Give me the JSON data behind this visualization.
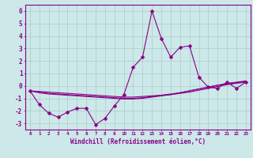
{
  "x_values": [
    0,
    1,
    2,
    3,
    4,
    5,
    6,
    7,
    8,
    9,
    10,
    11,
    12,
    13,
    14,
    15,
    16,
    17,
    18,
    19,
    20,
    21,
    22,
    23
  ],
  "y_main": [
    -0.4,
    -1.5,
    -2.2,
    -2.5,
    -2.1,
    -1.8,
    -1.8,
    -3.1,
    -2.6,
    -1.6,
    -0.7,
    1.5,
    2.3,
    6.0,
    3.8,
    2.3,
    3.1,
    3.2,
    0.7,
    -0.1,
    -0.2,
    0.3,
    -0.2,
    0.3
  ],
  "y_trend1": [
    -0.4,
    -0.45,
    -0.5,
    -0.55,
    -0.6,
    -0.65,
    -0.7,
    -0.75,
    -0.8,
    -0.85,
    -0.9,
    -0.9,
    -0.85,
    -0.8,
    -0.75,
    -0.7,
    -0.6,
    -0.5,
    -0.35,
    -0.2,
    -0.05,
    0.1,
    0.2,
    0.3
  ],
  "y_trend2": [
    -0.4,
    -0.5,
    -0.6,
    -0.65,
    -0.7,
    -0.75,
    -0.8,
    -0.85,
    -0.9,
    -0.95,
    -1.0,
    -1.0,
    -0.95,
    -0.85,
    -0.75,
    -0.65,
    -0.55,
    -0.4,
    -0.25,
    -0.1,
    0.05,
    0.15,
    0.25,
    0.35
  ],
  "y_trend3": [
    -0.4,
    -0.55,
    -0.65,
    -0.7,
    -0.75,
    -0.8,
    -0.85,
    -0.9,
    -0.95,
    -1.0,
    -1.05,
    -1.05,
    -1.0,
    -0.9,
    -0.8,
    -0.7,
    -0.55,
    -0.4,
    -0.25,
    -0.1,
    0.05,
    0.2,
    0.3,
    0.4
  ],
  "line_color": "#880088",
  "bg_color": "#cce8e8",
  "grid_color": "#aacccc",
  "xlabel": "Windchill (Refroidissement éolien,°C)",
  "xlim": [
    -0.5,
    23.5
  ],
  "ylim": [
    -3.5,
    6.5
  ],
  "yticks": [
    -3,
    -2,
    -1,
    0,
    1,
    2,
    3,
    4,
    5,
    6
  ],
  "xticks": [
    0,
    1,
    2,
    3,
    4,
    5,
    6,
    7,
    8,
    9,
    10,
    11,
    12,
    13,
    14,
    15,
    16,
    17,
    18,
    19,
    20,
    21,
    22,
    23
  ],
  "markersize": 2.5,
  "linewidth": 0.8,
  "trend_linewidth": 0.8
}
